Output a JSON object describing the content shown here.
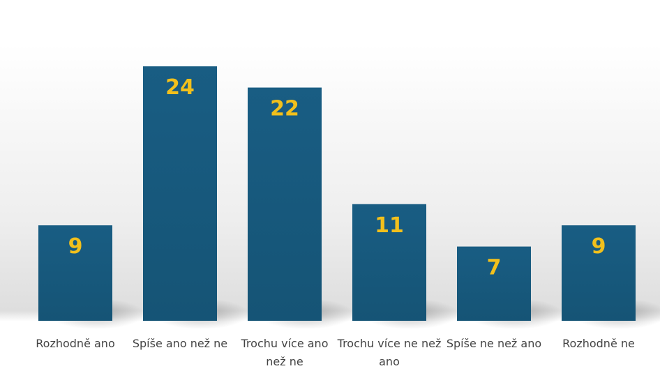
{
  "chart_data": {
    "type": "bar",
    "categories": [
      "Rozhodně ano",
      "Spíše ano než ne",
      "Trochu více ano než ne",
      "Trochu více ne než ano",
      "Spíše ne než ano",
      "Rozhodně ne"
    ],
    "values": [
      9,
      24,
      22,
      11,
      7,
      9
    ],
    "color": "#175a7f",
    "label_color": "#f2c01c"
  }
}
